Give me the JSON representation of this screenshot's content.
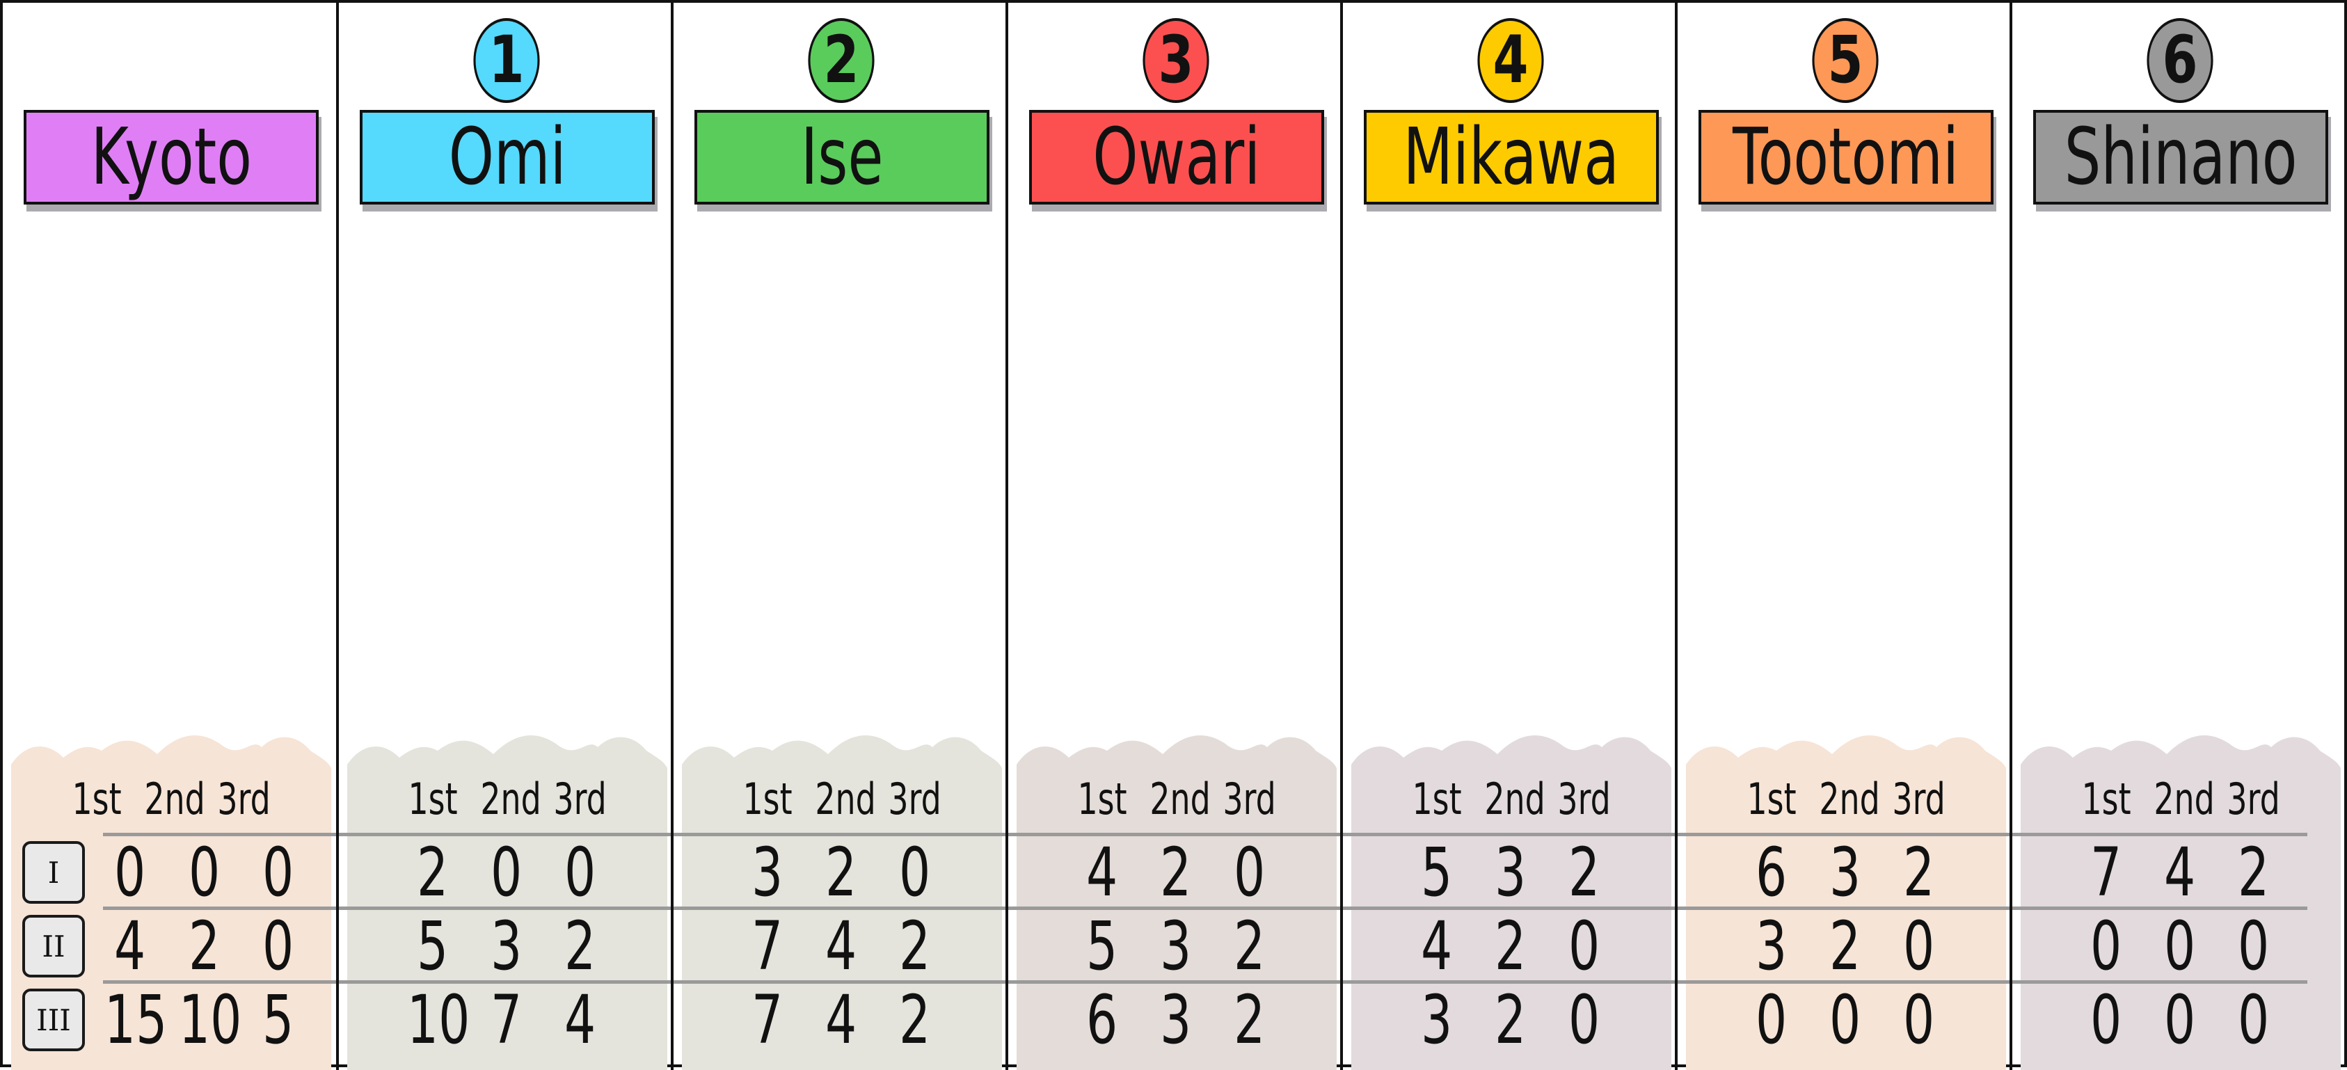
{
  "headers": [
    "1st",
    "2nd",
    "3rd"
  ],
  "rounds": [
    "I",
    "II",
    "III"
  ],
  "provinces": [
    {
      "name": "Kyoto",
      "number": "",
      "color": "#e07ff5",
      "panel_color": "#f6e4d6",
      "scores": [
        [
          "0",
          "0",
          "0"
        ],
        [
          "4",
          "2",
          "0"
        ],
        [
          "15",
          "10",
          "5"
        ]
      ]
    },
    {
      "name": "Omi",
      "number": "1",
      "color": "#55d9fc",
      "panel_color": "#e4e4dc",
      "scores": [
        [
          "2",
          "0",
          "0"
        ],
        [
          "5",
          "3",
          "2"
        ],
        [
          "10",
          "7",
          "4"
        ]
      ]
    },
    {
      "name": "Ise",
      "number": "2",
      "color": "#5acc5c",
      "panel_color": "#e4e4dc",
      "scores": [
        [
          "3",
          "2",
          "0"
        ],
        [
          "7",
          "4",
          "2"
        ],
        [
          "7",
          "4",
          "2"
        ]
      ]
    },
    {
      "name": "Owari",
      "number": "3",
      "color": "#fc5050",
      "panel_color": "#e4dcd8",
      "scores": [
        [
          "4",
          "2",
          "0"
        ],
        [
          "5",
          "3",
          "2"
        ],
        [
          "6",
          "3",
          "2"
        ]
      ]
    },
    {
      "name": "Mikawa",
      "number": "4",
      "color": "#fdcb00",
      "panel_color": "#e2dadc",
      "scores": [
        [
          "5",
          "3",
          "2"
        ],
        [
          "4",
          "2",
          "0"
        ],
        [
          "3",
          "2",
          "0"
        ]
      ]
    },
    {
      "name": "Tootomi",
      "number": "5",
      "color": "#fd9857",
      "panel_color": "#f6e4d6",
      "scores": [
        [
          "6",
          "3",
          "2"
        ],
        [
          "3",
          "2",
          "0"
        ],
        [
          "0",
          "0",
          "0"
        ]
      ]
    },
    {
      "name": "Shinano",
      "number": "6",
      "color": "#999999",
      "panel_color": "#e2dadc",
      "scores": [
        [
          "7",
          "4",
          "2"
        ],
        [
          "0",
          "0",
          "0"
        ],
        [
          "0",
          "0",
          "0"
        ]
      ]
    }
  ]
}
